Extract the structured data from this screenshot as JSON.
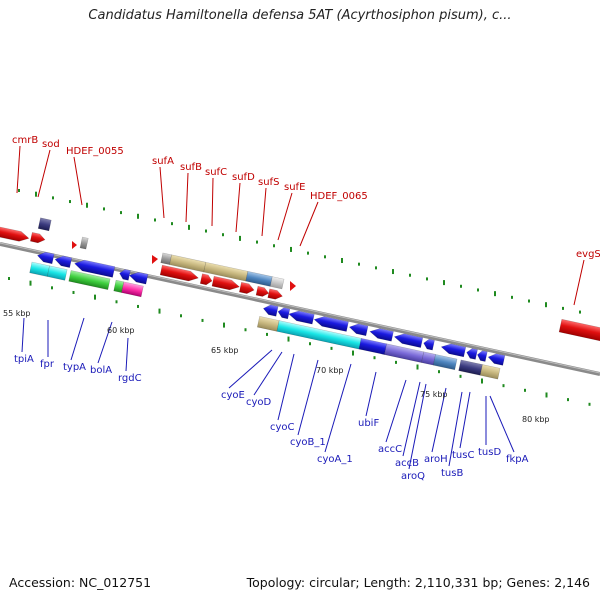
{
  "title": "Candidatus Hamiltonella defensa 5AT (Acyrthosiphon pisum), c...",
  "footer": {
    "accession": "Accession: NC_012751",
    "topology": "Topology: circular; Length: 2,110,331 bp; Genes: 2,146"
  },
  "ticks": [
    "55 kbp",
    "60 kbp",
    "65 kbp",
    "70 kbp",
    "75 kbp",
    "80 kbp"
  ],
  "genes_forward": [
    "cmrB",
    "sod",
    "HDEF_0055",
    "sufA",
    "sufB",
    "sufC",
    "sufD",
    "sufS",
    "sufE",
    "HDEF_0065",
    "evgS"
  ],
  "genes_reverse": [
    "tpiA",
    "fpr",
    "typA",
    "bolA",
    "rgdC",
    "cyoE",
    "cyoD",
    "cyoC",
    "cyoB_1",
    "cyoA_1",
    "ubiF",
    "accC",
    "accB",
    "aroQ",
    "aroH",
    "tusB",
    "tusC",
    "tusD",
    "fkpA"
  ],
  "colors": {
    "forward_gene": "#e01010",
    "reverse_gene": "#1a1ae0",
    "backbone": "#888888",
    "dots": "#1f8a1f"
  }
}
